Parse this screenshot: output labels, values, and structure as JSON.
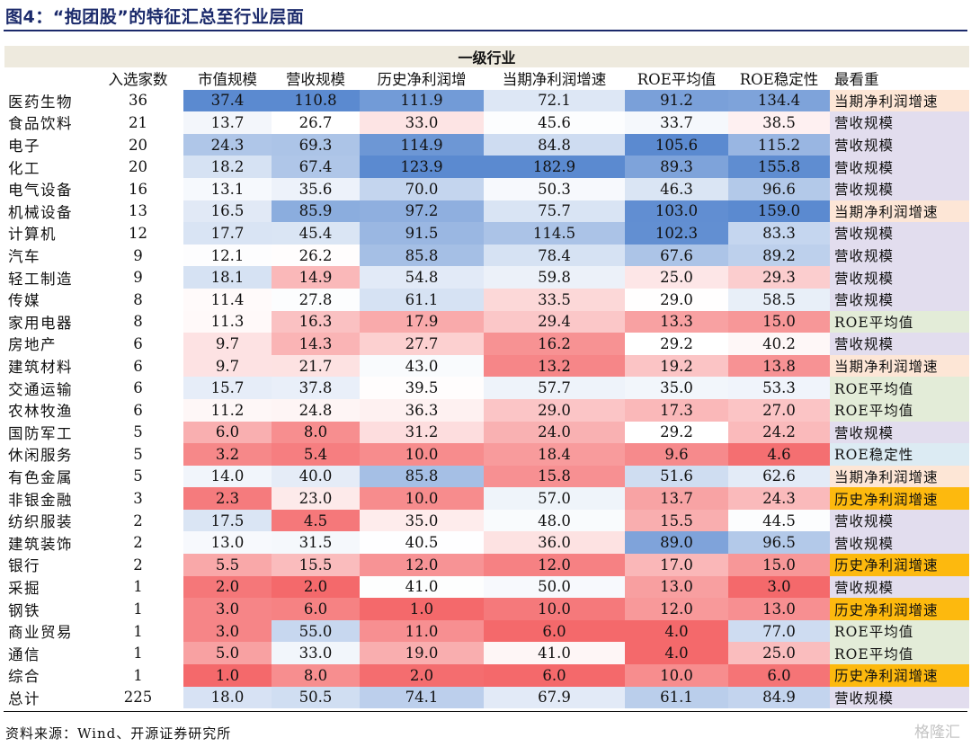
{
  "title": "图4：“抱团股”的特征汇总至行业层面",
  "group_header": "一级行业",
  "headers": [
    "入选家数",
    "市值规模",
    "营收规模",
    "历史净利润增",
    "当期净利润增速",
    "ROE平均值",
    "ROE稳定性",
    "最看重"
  ],
  "rows": [
    {
      "name": "医药生物",
      "count": "36",
      "vals": [
        "37.4",
        "110.8",
        "111.9",
        "72.1",
        "91.2",
        "134.4"
      ],
      "best": "当期净利润增速"
    },
    {
      "name": "食品饮料",
      "count": "21",
      "vals": [
        "13.7",
        "26.7",
        "33.0",
        "45.6",
        "33.7",
        "38.5"
      ],
      "best": "营收规模"
    },
    {
      "name": "电子",
      "count": "20",
      "vals": [
        "24.3",
        "69.3",
        "114.9",
        "84.8",
        "105.6",
        "115.2"
      ],
      "best": "营收规模"
    },
    {
      "name": "化工",
      "count": "20",
      "vals": [
        "18.2",
        "67.4",
        "123.9",
        "182.9",
        "89.3",
        "155.8"
      ],
      "best": "营收规模"
    },
    {
      "name": "电气设备",
      "count": "16",
      "vals": [
        "13.1",
        "35.6",
        "70.0",
        "50.3",
        "46.3",
        "96.6"
      ],
      "best": "营收规模"
    },
    {
      "name": "机械设备",
      "count": "13",
      "vals": [
        "16.5",
        "85.9",
        "97.2",
        "75.7",
        "103.0",
        "159.0"
      ],
      "best": "当期净利润增速"
    },
    {
      "name": "计算机",
      "count": "12",
      "vals": [
        "17.7",
        "45.4",
        "91.5",
        "114.5",
        "102.3",
        "83.3"
      ],
      "best": "营收规模"
    },
    {
      "name": "汽车",
      "count": "9",
      "vals": [
        "12.1",
        "26.2",
        "85.8",
        "78.4",
        "67.6",
        "89.2"
      ],
      "best": "营收规模"
    },
    {
      "name": "轻工制造",
      "count": "9",
      "vals": [
        "18.1",
        "14.9",
        "54.8",
        "59.8",
        "25.0",
        "29.3"
      ],
      "best": "营收规模"
    },
    {
      "name": "传媒",
      "count": "8",
      "vals": [
        "11.4",
        "27.8",
        "61.1",
        "33.5",
        "29.0",
        "58.5"
      ],
      "best": "营收规模"
    },
    {
      "name": "家用电器",
      "count": "8",
      "vals": [
        "11.3",
        "16.3",
        "17.9",
        "29.4",
        "13.3",
        "15.0"
      ],
      "best": "ROE平均值"
    },
    {
      "name": "房地产",
      "count": "6",
      "vals": [
        "9.7",
        "14.3",
        "27.7",
        "16.2",
        "29.2",
        "40.2"
      ],
      "best": "营收规模"
    },
    {
      "name": "建筑材料",
      "count": "6",
      "vals": [
        "9.7",
        "21.7",
        "43.0",
        "13.2",
        "19.2",
        "13.8"
      ],
      "best": "当期净利润增速"
    },
    {
      "name": "交通运输",
      "count": "6",
      "vals": [
        "15.7",
        "37.8",
        "39.5",
        "57.7",
        "35.0",
        "53.3"
      ],
      "best": "ROE平均值"
    },
    {
      "name": "农林牧渔",
      "count": "6",
      "vals": [
        "11.2",
        "24.8",
        "36.3",
        "29.0",
        "17.3",
        "27.0"
      ],
      "best": "ROE平均值"
    },
    {
      "name": "国防军工",
      "count": "5",
      "vals": [
        "6.0",
        "8.0",
        "31.2",
        "24.0",
        "29.2",
        "24.2"
      ],
      "best": "营收规模"
    },
    {
      "name": "休闲服务",
      "count": "5",
      "vals": [
        "3.2",
        "5.4",
        "10.0",
        "18.4",
        "9.6",
        "4.6"
      ],
      "best": "ROE稳定性"
    },
    {
      "name": "有色金属",
      "count": "5",
      "vals": [
        "14.0",
        "40.0",
        "85.8",
        "15.8",
        "51.6",
        "62.6"
      ],
      "best": "当期净利润增速"
    },
    {
      "name": "非银金融",
      "count": "3",
      "vals": [
        "2.3",
        "23.0",
        "10.0",
        "57.0",
        "13.7",
        "24.3"
      ],
      "best": "历史净利润增速"
    },
    {
      "name": "纺织服装",
      "count": "2",
      "vals": [
        "17.5",
        "4.5",
        "35.0",
        "48.0",
        "15.5",
        "44.5"
      ],
      "best": "营收规模"
    },
    {
      "name": "建筑装饰",
      "count": "2",
      "vals": [
        "13.0",
        "31.5",
        "40.5",
        "36.0",
        "89.0",
        "96.5"
      ],
      "best": "营收规模"
    },
    {
      "name": "银行",
      "count": "2",
      "vals": [
        "5.5",
        "15.5",
        "12.0",
        "12.0",
        "17.0",
        "15.0"
      ],
      "best": "历史净利润增速"
    },
    {
      "name": "采掘",
      "count": "1",
      "vals": [
        "2.0",
        "2.0",
        "41.0",
        "50.0",
        "13.0",
        "3.0"
      ],
      "best": "营收规模"
    },
    {
      "name": "钢铁",
      "count": "1",
      "vals": [
        "3.0",
        "6.0",
        "1.0",
        "10.0",
        "12.0",
        "13.0"
      ],
      "best": "历史净利润增速"
    },
    {
      "name": "商业贸易",
      "count": "1",
      "vals": [
        "3.0",
        "55.0",
        "11.0",
        "6.0",
        "4.0",
        "77.0"
      ],
      "best": "ROE平均值"
    },
    {
      "name": "通信",
      "count": "1",
      "vals": [
        "5.0",
        "33.0",
        "19.0",
        "41.0",
        "4.0",
        "25.0"
      ],
      "best": "ROE平均值"
    },
    {
      "name": "综合",
      "count": "1",
      "vals": [
        "1.0",
        "8.0",
        "2.0",
        "6.0",
        "10.0",
        "6.0"
      ],
      "best": "历史净利润增速"
    },
    {
      "name": "总计",
      "count": "225",
      "vals": [
        "18.0",
        "50.5",
        "74.1",
        "67.9",
        "61.1",
        "84.9"
      ],
      "best": "营收规模"
    }
  ],
  "source": "资料来源：Wind、开源证券研究所",
  "watermark": "格隆汇",
  "colors": {
    "high": "#5b8ad0",
    "mid": "#ffffff",
    "low": "#f4696b"
  }
}
